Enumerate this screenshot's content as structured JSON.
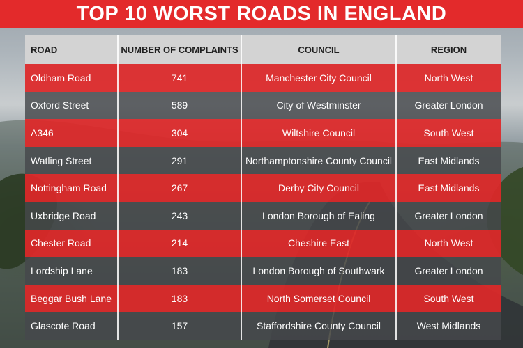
{
  "header": {
    "title": "TOP 10 WORST ROADS IN ENGLAND"
  },
  "colors": {
    "accent_red": "#e32a2b",
    "row_grey": "#46484c",
    "header_grey": "#d3d3d3"
  },
  "chart_data": {
    "type": "table",
    "title": "TOP 10 WORST ROADS IN ENGLAND",
    "columns": [
      "ROAD",
      "NUMBER OF COMPLAINTS",
      "COUNCIL",
      "REGION"
    ],
    "rows": [
      {
        "road": "Oldham Road",
        "complaints": "741",
        "council": "Manchester City Council",
        "region": "North West"
      },
      {
        "road": "Oxford Street",
        "complaints": "589",
        "council": "City of Westminster",
        "region": "Greater London"
      },
      {
        "road": "A346",
        "complaints": "304",
        "council": "Wiltshire Council",
        "region": "South West"
      },
      {
        "road": "Watling Street",
        "complaints": "291",
        "council": "Northamptonshire County Council",
        "region": "East Midlands"
      },
      {
        "road": "Nottingham Road",
        "complaints": "267",
        "council": "Derby City Council",
        "region": "East Midlands"
      },
      {
        "road": "Uxbridge Road",
        "complaints": "243",
        "council": "London Borough of Ealing",
        "region": "Greater London"
      },
      {
        "road": "Chester Road",
        "complaints": "214",
        "council": "Cheshire East",
        "region": "North West"
      },
      {
        "road": "Lordship Lane",
        "complaints": "183",
        "council": "London Borough of Southwark",
        "region": "Greater London"
      },
      {
        "road": "Beggar Bush Lane",
        "complaints": "183",
        "council": "North Somerset Council",
        "region": "South West"
      },
      {
        "road": "Glascote Road",
        "complaints": "157",
        "council": "Staffordshire County Council",
        "region": "West Midlands"
      }
    ]
  }
}
